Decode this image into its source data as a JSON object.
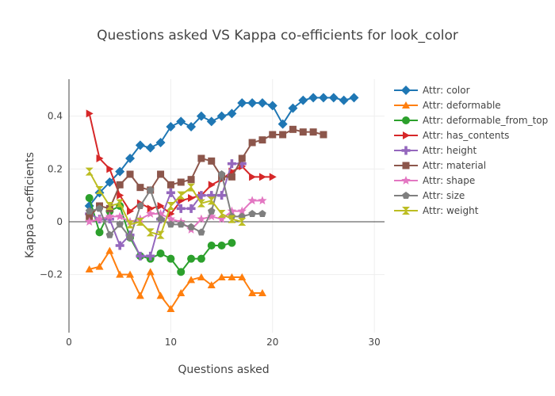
{
  "chart_data": {
    "type": "line",
    "title": "Questions asked VS Kappa co-efficients for look_color",
    "xlabel": "Questions asked",
    "ylabel": "Kappa co-efficients",
    "xlim": [
      0,
      31
    ],
    "ylim": [
      -0.42,
      0.54
    ],
    "xticks": [
      0,
      10,
      20,
      30
    ],
    "xtick_labels": [
      "0",
      "10",
      "20",
      "30"
    ],
    "yticks": [
      -0.2,
      0,
      0.2,
      0.4
    ],
    "ytick_labels": [
      "−0.2",
      "0",
      "0.2",
      "0.4"
    ],
    "grid": true,
    "legend_position": "right",
    "series": [
      {
        "name": "Attr: color",
        "color": "#1f77b4",
        "marker": "diamond",
        "x": [
          2,
          3,
          4,
          5,
          6,
          7,
          8,
          9,
          10,
          11,
          12,
          13,
          14,
          15,
          16,
          17,
          18,
          19,
          20,
          21,
          22,
          23,
          24,
          25,
          26,
          27,
          28
        ],
        "y": [
          0.06,
          0.11,
          0.15,
          0.19,
          0.24,
          0.29,
          0.28,
          0.3,
          0.36,
          0.38,
          0.36,
          0.4,
          0.38,
          0.4,
          0.41,
          0.45,
          0.45,
          0.45,
          0.44,
          0.37,
          0.43,
          0.46,
          0.47,
          0.47,
          0.47,
          0.46,
          0.47
        ]
      },
      {
        "name": "Attr: deformable",
        "color": "#ff7f0e",
        "marker": "triangle-up",
        "x": [
          2,
          3,
          4,
          5,
          6,
          7,
          8,
          9,
          10,
          11,
          12,
          13,
          14,
          15,
          16,
          17,
          18,
          19
        ],
        "y": [
          -0.18,
          -0.17,
          -0.11,
          -0.2,
          -0.2,
          -0.28,
          -0.19,
          -0.28,
          -0.33,
          -0.27,
          -0.22,
          -0.21,
          -0.24,
          -0.21,
          -0.21,
          -0.21,
          -0.27,
          -0.27
        ]
      },
      {
        "name": "Attr: deformable_from_top",
        "color": "#2ca02c",
        "marker": "circle",
        "x": [
          2,
          3,
          4,
          5,
          6,
          7,
          8,
          9,
          10,
          11,
          12,
          13,
          14,
          15,
          16
        ],
        "y": [
          0.09,
          -0.04,
          0.04,
          0.06,
          -0.06,
          -0.13,
          -0.14,
          -0.12,
          -0.14,
          -0.19,
          -0.14,
          -0.14,
          -0.09,
          -0.09,
          -0.08
        ]
      },
      {
        "name": "Attr: has_contents",
        "color": "#d62728",
        "marker": "triangle-right",
        "x": [
          2,
          3,
          4,
          5,
          6,
          7,
          8,
          9,
          10,
          11,
          12,
          13,
          14,
          15,
          16,
          17,
          18,
          19,
          20
        ],
        "y": [
          0.41,
          0.24,
          0.2,
          0.1,
          0.04,
          0.07,
          0.05,
          0.06,
          0.03,
          0.08,
          0.09,
          0.1,
          0.14,
          0.16,
          0.19,
          0.21,
          0.17,
          0.17,
          0.17
        ]
      },
      {
        "name": "Attr: height",
        "color": "#9467bd",
        "marker": "plus",
        "x": [
          2,
          3,
          4,
          5,
          6,
          7,
          8,
          9,
          10,
          11,
          12,
          13,
          14,
          15,
          16,
          17
        ],
        "y": [
          0.03,
          0.01,
          0.01,
          -0.09,
          -0.05,
          -0.13,
          -0.13,
          0.01,
          0.11,
          0.05,
          0.05,
          0.1,
          0.1,
          0.1,
          0.22,
          0.22
        ]
      },
      {
        "name": "Attr: material",
        "color": "#8c564b",
        "marker": "square",
        "x": [
          2,
          3,
          4,
          5,
          6,
          7,
          8,
          9,
          10,
          11,
          12,
          13,
          14,
          15,
          16,
          17,
          18,
          19,
          20,
          21,
          22,
          23,
          24,
          25
        ],
        "y": [
          0.02,
          0.06,
          0.05,
          0.14,
          0.18,
          0.13,
          0.12,
          0.18,
          0.14,
          0.15,
          0.16,
          0.24,
          0.23,
          0.17,
          0.17,
          0.24,
          0.3,
          0.31,
          0.33,
          0.33,
          0.35,
          0.34,
          0.34,
          0.33
        ]
      },
      {
        "name": "Attr: shape",
        "color": "#e377c2",
        "marker": "star",
        "x": [
          2,
          3,
          4,
          5,
          6,
          7,
          8,
          9,
          10,
          11,
          12,
          13,
          14,
          15,
          16,
          17,
          18,
          19
        ],
        "y": [
          0.0,
          0.01,
          0.02,
          0.02,
          0.0,
          0.01,
          0.03,
          0.03,
          0.01,
          0.0,
          -0.03,
          0.01,
          0.02,
          0.01,
          0.04,
          0.04,
          0.08,
          0.08
        ]
      },
      {
        "name": "Attr: size",
        "color": "#7f7f7f",
        "marker": "pentagon",
        "x": [
          2,
          3,
          4,
          5,
          6,
          7,
          8,
          9,
          10,
          11,
          12,
          13,
          14,
          15,
          16,
          17,
          18,
          19
        ],
        "y": [
          0.04,
          0.05,
          -0.05,
          -0.01,
          -0.06,
          0.06,
          0.12,
          0.01,
          -0.01,
          -0.01,
          -0.02,
          -0.04,
          0.04,
          0.18,
          0.02,
          0.02,
          0.03,
          0.03
        ]
      },
      {
        "name": "Attr: weight",
        "color": "#bcbd22",
        "marker": "hourglass",
        "x": [
          2,
          3,
          4,
          5,
          6,
          7,
          8,
          9,
          10,
          11,
          12,
          13,
          14,
          15,
          16,
          17
        ],
        "y": [
          0.19,
          0.12,
          0.06,
          0.07,
          -0.01,
          0.0,
          -0.04,
          -0.05,
          0.06,
          0.1,
          0.13,
          0.07,
          0.08,
          0.03,
          0.01,
          0.0
        ]
      }
    ]
  }
}
